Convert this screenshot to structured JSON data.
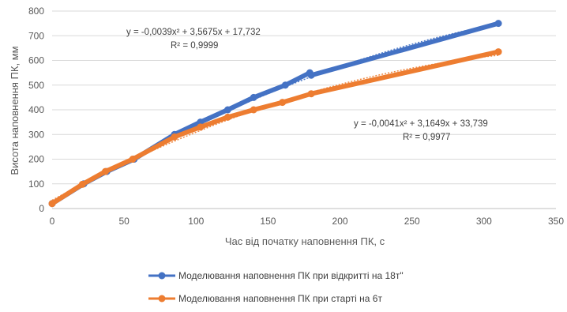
{
  "chart_data": {
    "type": "scatter",
    "xlabel": "Час від початку наповнення ПК, с",
    "ylabel": "Висота  наповнення ПК, мм",
    "xlim": [
      0,
      350
    ],
    "ylim": [
      0,
      800
    ],
    "x_ticks": [
      "0",
      "50",
      "100",
      "150",
      "200",
      "250",
      "300",
      "350"
    ],
    "y_ticks": [
      "0",
      "100",
      "200",
      "300",
      "400",
      "500",
      "600",
      "700",
      "800"
    ],
    "grid": "horizontal",
    "legend_position": "bottom",
    "series": [
      {
        "name": "Моделювання наповнення ПК при відкритті на 18т\"",
        "color": "#4472C4",
        "points": [
          [
            0,
            20
          ],
          [
            22,
            100
          ],
          [
            38,
            150
          ],
          [
            57,
            200
          ],
          [
            85,
            300
          ],
          [
            103,
            350
          ],
          [
            122,
            400
          ],
          [
            140,
            450
          ],
          [
            162,
            500
          ],
          [
            179,
            550
          ],
          [
            180,
            540
          ],
          [
            310,
            750
          ]
        ],
        "trendline": {
          "a": -0.0039,
          "b": 3.5675,
          "c": 17.732,
          "x_range": [
            0,
            310
          ]
        },
        "equation_label": "y = -0,0039x² + 3,5675x + 17,732",
        "r2_label": "R² = 0,9999"
      },
      {
        "name": "Моделювання наповнення ПК при старті на 6т",
        "color": "#ED7D31",
        "points": [
          [
            0,
            20
          ],
          [
            21,
            98
          ],
          [
            37,
            150
          ],
          [
            56,
            200
          ],
          [
            85,
            290
          ],
          [
            103,
            330
          ],
          [
            122,
            370
          ],
          [
            140,
            400
          ],
          [
            160,
            430
          ],
          [
            180,
            465
          ],
          [
            310,
            635
          ]
        ],
        "trendline": {
          "a": -0.0041,
          "b": 3.1649,
          "c": 33.739,
          "x_range": [
            0,
            310
          ]
        },
        "equation_label": "y = -0,0041x² + 3,1649x + 33,739",
        "r2_label": "R² = 0,9977"
      }
    ]
  }
}
